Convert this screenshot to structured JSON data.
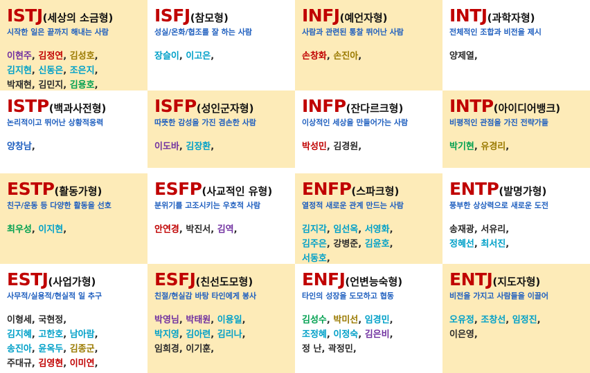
{
  "colors": {
    "type_code": "#c00000",
    "description": "#1f5fbf",
    "cell_yellow": "#fdebb8",
    "divider": "#777777",
    "name_colors": [
      "#7030a0",
      "#c00000",
      "#00a0c8",
      "#00a050",
      "#2a2a2a",
      "#9a7a00",
      "#1f5fbf"
    ]
  },
  "cells": [
    {
      "code": "ISTJ",
      "kname": "(세상의 소금형)",
      "desc": "시작한 일은 끝까지 해내는 사람",
      "bg": "y",
      "rows": [
        [
          [
            "이현주",
            "#7030a0"
          ],
          [
            "김정연",
            "#c00000"
          ],
          [
            "김성호",
            "#9a7a00"
          ]
        ],
        [
          [
            "김지현",
            "#00a0c8"
          ],
          [
            "신동은",
            "#00a0c8"
          ],
          [
            "조은지",
            "#00a0c8"
          ]
        ],
        [
          [
            "박재현",
            "#2a2a2a"
          ],
          [
            "김민지",
            "#2a2a2a"
          ],
          [
            "김용호",
            "#00a050"
          ]
        ]
      ]
    },
    {
      "code": "ISFJ",
      "kname": "(참모형)",
      "desc": "성실/온화/협조를 잘 하는 사람",
      "bg": "w",
      "rows": [
        [
          [
            "장슬이",
            "#00a0c8"
          ],
          [
            "이고은",
            "#00a0c8"
          ]
        ]
      ]
    },
    {
      "code": "INFJ",
      "kname": "(예언자형)",
      "desc": "사람과 관련된 통찰 뛰어난 사람",
      "bg": "y",
      "rows": [
        [
          [
            "손창화",
            "#c00000"
          ],
          [
            "손진아",
            "#9a7a00"
          ]
        ]
      ]
    },
    {
      "code": "INTJ",
      "kname": "(과학자형)",
      "desc": "전체적인 조합과 비전을 제시",
      "bg": "w",
      "rows": [
        [
          [
            "양제열",
            "#2a2a2a"
          ]
        ]
      ]
    },
    {
      "code": "ISTP",
      "kname": "(백과사전형)",
      "desc": "논리적이고 뛰어난 상황적응력",
      "bg": "w",
      "rows": [
        [
          [
            "양창남",
            "#1f5fbf"
          ]
        ]
      ]
    },
    {
      "code": "ISFP",
      "kname": "(성인군자형)",
      "desc": "따뜻한 감성을 가진 겸손한 사람",
      "bg": "y",
      "rows": [
        [
          [
            "이도바",
            "#7030a0"
          ],
          [
            "김장환",
            "#00a0c8"
          ]
        ]
      ]
    },
    {
      "code": "INFP",
      "kname": "(잔다르크형)",
      "desc": "이상적인 세상을 만들어가는 사람",
      "bg": "w",
      "rows": [
        [
          [
            "박성민",
            "#c00000"
          ],
          [
            "김경원",
            "#2a2a2a"
          ]
        ]
      ]
    },
    {
      "code": "INTP",
      "kname": "(아이디어뱅크)",
      "desc": "비평적인 관점을 가진 전략가들",
      "bg": "y",
      "rows": [
        [
          [
            "박기현",
            "#00a050"
          ],
          [
            "유경리",
            "#9a7a00"
          ]
        ]
      ]
    },
    {
      "code": "ESTP",
      "kname": "(활동가형)",
      "desc": "친구/운동 등 다양한 활동을 선호",
      "bg": "y",
      "rows": [
        [
          [
            "최우성",
            "#00a050"
          ],
          [
            "이지현",
            "#00a0c8"
          ]
        ]
      ]
    },
    {
      "code": "ESFP",
      "kname": "(사교적인 유형)",
      "desc": "분위기를 고조시키는 우호적 사람",
      "bg": "w",
      "rows": [
        [
          [
            "안연경",
            "#c00000"
          ],
          [
            "박진서",
            "#2a2a2a"
          ],
          [
            "김역",
            "#7030a0"
          ]
        ]
      ]
    },
    {
      "code": "ENFP",
      "kname": "(스파크형)",
      "desc": "열정적 새로운 관계 만드는 사람",
      "bg": "y",
      "rows": [
        [
          [
            "김지각",
            "#00a0c8"
          ],
          [
            "임선옥",
            "#00a0c8"
          ],
          [
            "서영화",
            "#00a0c8"
          ]
        ],
        [
          [
            "김주은",
            "#00a0c8"
          ],
          [
            "강병준",
            "#2a2a2a"
          ],
          [
            "김윤호",
            "#00a0c8"
          ]
        ],
        [
          [
            "서동호",
            "#00a0c8"
          ]
        ]
      ]
    },
    {
      "code": "ENTP",
      "kname": "(발명가형)",
      "desc": "풍부한 상상력으로 새로운 도전",
      "bg": "w",
      "rows": [
        [
          [
            "송재광",
            "#2a2a2a"
          ],
          [
            "서유리",
            "#2a2a2a"
          ]
        ],
        [
          [
            "정혜선",
            "#00a0c8"
          ],
          [
            "최서진",
            "#00a0c8"
          ]
        ]
      ]
    },
    {
      "code": "ESTJ",
      "kname": "(사업가형)",
      "desc": "사무적/실용적/현실적 일 추구",
      "bg": "w",
      "rows": [
        [
          [
            "이형세",
            "#2a2a2a"
          ],
          [
            "국현정",
            "#2a2a2a"
          ]
        ],
        [
          [
            "김지혜",
            "#00a0c8"
          ],
          [
            "고한호",
            "#00a0c8"
          ],
          [
            "남아람",
            "#00a0c8"
          ]
        ],
        [
          [
            "송진아",
            "#00a0c8"
          ],
          [
            "윤옥두",
            "#00a0c8"
          ],
          [
            "김종군",
            "#9a7a00"
          ]
        ],
        [
          [
            "주대규",
            "#2a2a2a"
          ],
          [
            "김영현",
            "#c00000"
          ],
          [
            "이미연",
            "#c00000"
          ]
        ]
      ]
    },
    {
      "code": "ESFJ",
      "kname": "(친선도모형)",
      "desc": "친절/현실감 바탕 타인에게 봉사",
      "bg": "y",
      "rows": [
        [
          [
            "박영님",
            "#7030a0"
          ],
          [
            "박태원",
            "#7030a0"
          ],
          [
            "이용일",
            "#00a0c8"
          ]
        ],
        [
          [
            "박지영",
            "#00a0c8"
          ],
          [
            "김아련",
            "#00a0c8"
          ],
          [
            "김리나",
            "#00a0c8"
          ]
        ],
        [
          [
            "임희경",
            "#2a2a2a"
          ],
          [
            "이기훈",
            "#2a2a2a"
          ]
        ]
      ]
    },
    {
      "code": "ENFJ",
      "kname": "(언변능숙형)",
      "desc": "타인의 성장을 도모하고 협동",
      "bg": "w",
      "rows": [
        [
          [
            "김성수",
            "#00a050"
          ],
          [
            "박미선",
            "#9a7a00"
          ],
          [
            "임경민",
            "#00a0c8"
          ]
        ],
        [
          [
            "조정혜",
            "#00a0c8"
          ],
          [
            "이정숙",
            "#00a0c8"
          ],
          [
            "김은비",
            "#7030a0"
          ]
        ],
        [
          [
            "정   난",
            "#2a2a2a"
          ],
          [
            "곽정민",
            "#2a2a2a"
          ]
        ]
      ]
    },
    {
      "code": "ENTJ",
      "kname": "(지도자형)",
      "desc": "비전을 가지고 사람들을 이끌어",
      "bg": "y",
      "rows": [
        [
          [
            "오유정",
            "#00a0c8"
          ],
          [
            "조창선",
            "#00a0c8"
          ],
          [
            "임정진",
            "#00a0c8"
          ]
        ],
        [
          [
            "이은영",
            "#2a2a2a"
          ]
        ]
      ]
    }
  ]
}
